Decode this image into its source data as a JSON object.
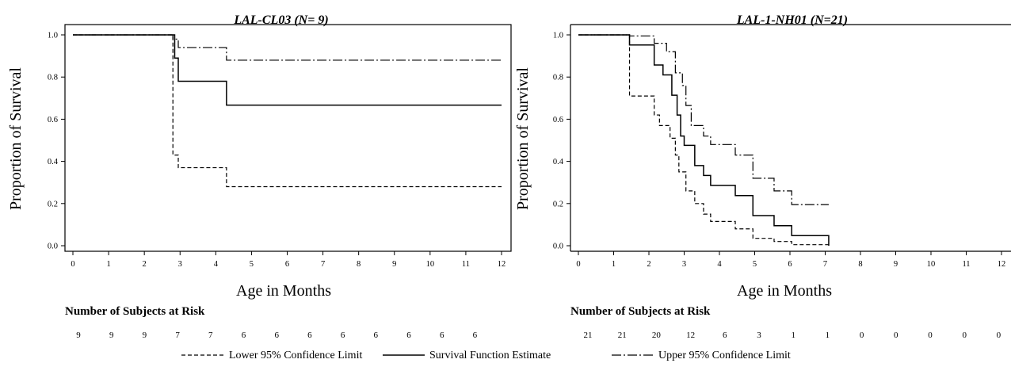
{
  "chart_data": [
    {
      "type": "line",
      "title": "LAL-CL03 (N= 9)",
      "xlabel": "Age in Months",
      "ylabel": "Proportion of Survival",
      "xlim": [
        0,
        12
      ],
      "ylim": [
        0,
        1
      ],
      "xticks": [
        "0",
        "1",
        "2",
        "3",
        "4",
        "5",
        "6",
        "7",
        "8",
        "9",
        "10",
        "11",
        "12"
      ],
      "yticks": [
        "0.0",
        "0.2",
        "0.4",
        "0.6",
        "0.8",
        "1.0"
      ],
      "step": true,
      "series": [
        {
          "name": "Lower 95% Confidence Limit",
          "style": "dashed",
          "x": [
            0,
            2.8,
            2.8,
            2.95,
            2.95,
            4.3,
            4.3,
            12
          ],
          "y": [
            1.0,
            1.0,
            0.43,
            0.43,
            0.37,
            0.37,
            0.28,
            0.28
          ]
        },
        {
          "name": "Survival Function Estimate",
          "style": "solid",
          "x": [
            0,
            2.85,
            2.85,
            2.95,
            2.95,
            4.3,
            4.3,
            12
          ],
          "y": [
            1.0,
            1.0,
            0.89,
            0.89,
            0.78,
            0.78,
            0.667,
            0.667
          ]
        },
        {
          "name": "Upper 95% Confidence Limit",
          "style": "dashdot",
          "x": [
            0,
            2.8,
            2.8,
            2.95,
            2.95,
            4.3,
            4.3,
            12
          ],
          "y": [
            1.0,
            1.0,
            0.98,
            0.98,
            0.94,
            0.94,
            0.88,
            0.88
          ]
        }
      ],
      "risk_table": {
        "title": "Number of Subjects at Risk",
        "values": [
          "9",
          "9",
          "9",
          "7",
          "7",
          "6",
          "6",
          "6",
          "6",
          "6",
          "6",
          "6",
          "6"
        ]
      }
    },
    {
      "type": "line",
      "title": "LAL-1-NH01 (N=21)",
      "xlabel": "Age in Months",
      "ylabel": "Proportion of Survival",
      "xlim": [
        0,
        12
      ],
      "ylim": [
        0,
        1
      ],
      "xticks": [
        "0",
        "1",
        "2",
        "3",
        "4",
        "5",
        "6",
        "7",
        "8",
        "9",
        "10",
        "11",
        "12"
      ],
      "yticks": [
        "0.0",
        "0.2",
        "0.4",
        "0.6",
        "0.8",
        "1.0"
      ],
      "step": true,
      "series": [
        {
          "name": "Lower 95% Confidence Limit",
          "style": "dashed",
          "x": [
            0,
            1.45,
            1.45,
            2.15,
            2.15,
            2.3,
            2.3,
            2.6,
            2.6,
            2.75,
            2.75,
            2.85,
            2.85,
            3.05,
            3.05,
            3.3,
            3.3,
            3.55,
            3.55,
            3.75,
            3.75,
            4.45,
            4.45,
            4.95,
            4.95,
            5.55,
            5.55,
            6.05,
            6.05,
            7.1,
            7.1
          ],
          "y": [
            1.0,
            1.0,
            0.71,
            0.71,
            0.62,
            0.62,
            0.57,
            0.57,
            0.51,
            0.51,
            0.43,
            0.43,
            0.35,
            0.35,
            0.26,
            0.26,
            0.2,
            0.2,
            0.15,
            0.15,
            0.115,
            0.115,
            0.08,
            0.08,
            0.035,
            0.035,
            0.02,
            0.02,
            0.005,
            0.005,
            0.0
          ]
        },
        {
          "name": "Survival Function Estimate",
          "style": "solid",
          "x": [
            0,
            1.45,
            1.45,
            2.15,
            2.15,
            2.4,
            2.4,
            2.65,
            2.65,
            2.8,
            2.8,
            2.9,
            2.9,
            3.0,
            3.0,
            3.3,
            3.3,
            3.55,
            3.55,
            3.75,
            3.75,
            4.45,
            4.45,
            4.95,
            4.95,
            5.55,
            5.55,
            6.05,
            6.05,
            7.1,
            7.1
          ],
          "y": [
            1.0,
            1.0,
            0.952,
            0.952,
            0.857,
            0.857,
            0.81,
            0.81,
            0.714,
            0.714,
            0.62,
            0.62,
            0.52,
            0.52,
            0.476,
            0.476,
            0.38,
            0.38,
            0.333,
            0.333,
            0.286,
            0.286,
            0.238,
            0.238,
            0.143,
            0.143,
            0.095,
            0.095,
            0.048,
            0.048,
            0.0
          ]
        },
        {
          "name": "Upper 95% Confidence Limit",
          "style": "dashdot",
          "x": [
            0,
            1.45,
            1.45,
            2.15,
            2.15,
            2.5,
            2.5,
            2.75,
            2.75,
            2.95,
            2.95,
            3.05,
            3.05,
            3.2,
            3.2,
            3.55,
            3.55,
            3.75,
            3.75,
            4.45,
            4.45,
            4.95,
            4.95,
            5.55,
            5.55,
            6.05,
            6.05,
            7.1
          ],
          "y": [
            1.0,
            1.0,
            0.995,
            0.995,
            0.96,
            0.96,
            0.92,
            0.92,
            0.82,
            0.82,
            0.76,
            0.76,
            0.665,
            0.665,
            0.57,
            0.57,
            0.52,
            0.52,
            0.48,
            0.48,
            0.43,
            0.43,
            0.32,
            0.32,
            0.26,
            0.26,
            0.195,
            0.195
          ]
        }
      ],
      "risk_table": {
        "title": "Number of Subjects at Risk",
        "values": [
          "21",
          "21",
          "20",
          "12",
          "6",
          "3",
          "1",
          "1",
          "0",
          "0",
          "0",
          "0",
          "0"
        ]
      }
    }
  ],
  "legend": {
    "position": "bottom",
    "items": [
      {
        "label": "Lower 95% Confidence Limit",
        "style": "dashed"
      },
      {
        "label": "Survival Function Estimate",
        "style": "solid"
      },
      {
        "label": "Upper 95% Confidence Limit",
        "style": "dashdot"
      }
    ]
  }
}
